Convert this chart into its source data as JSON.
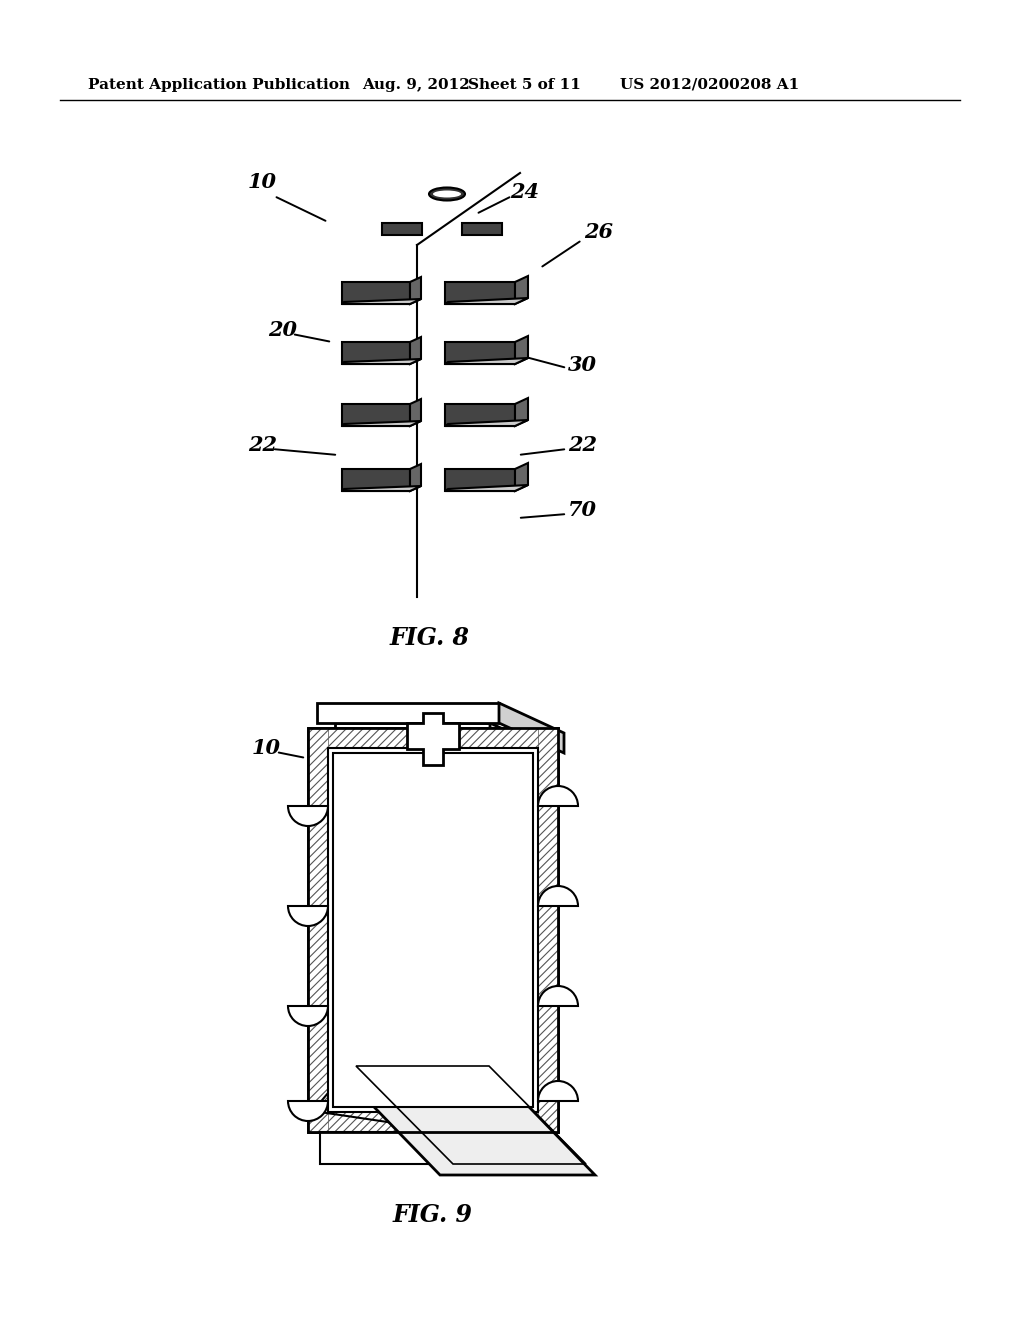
{
  "bg_color": "#ffffff",
  "header_text": "Patent Application Publication",
  "header_date": "Aug. 9, 2012",
  "header_sheet": "Sheet 5 of 11",
  "header_patent": "US 2012/0200208 A1",
  "fig8_label": "FIG. 8",
  "fig9_label": "FIG. 9"
}
